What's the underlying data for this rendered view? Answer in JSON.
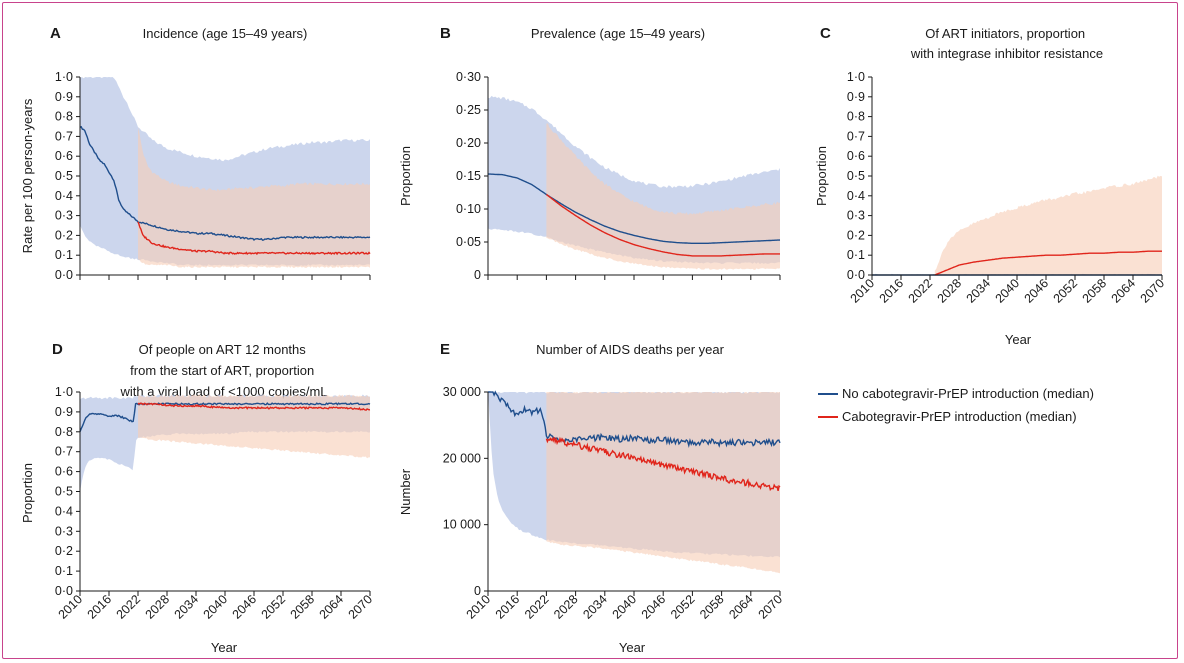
{
  "figure": {
    "colors": {
      "border": "#c8438c",
      "blue_line": "#1f4e8c",
      "red_line": "#e0251b",
      "blue_band": "#b9c6e6",
      "red_band": "#f7cdb6",
      "axis": "#1a1a1a"
    },
    "legend": {
      "entries": [
        "No cabotegravir-PrEP introduction (median)",
        "Cabotegravir-PrEP  introduction (median)"
      ]
    }
  },
  "chart_data": [
    {
      "id": "A",
      "type": "area",
      "title": "Incidence (age 15–49 years)",
      "xlabel": "",
      "ylabel": "Rate per 100 person-years",
      "xlim": [
        2010,
        2070
      ],
      "ylim": [
        0,
        1.0
      ],
      "yticks": [
        "0·0",
        "0·1",
        "0·2",
        "0·3",
        "0·4",
        "0·5",
        "0·6",
        "0·7",
        "0·8",
        "0·9",
        "1·0"
      ],
      "xtick_values": [
        2010,
        2016,
        2022,
        2028,
        2034,
        2040,
        2046,
        2052,
        2058,
        2064,
        2070
      ],
      "xtick_labels_shown": false,
      "series": [
        {
          "name": "No cabotegravir-PrEP introduction (median)",
          "x": [
            2010,
            2011,
            2012,
            2013,
            2014,
            2015,
            2016,
            2017,
            2018,
            2019,
            2020,
            2021,
            2022,
            2025,
            2028,
            2031,
            2034,
            2037,
            2040,
            2043,
            2046,
            2049,
            2052,
            2055,
            2058,
            2061,
            2064,
            2067,
            2070
          ],
          "median": [
            0.75,
            0.73,
            0.66,
            0.62,
            0.58,
            0.56,
            0.52,
            0.48,
            0.38,
            0.33,
            0.31,
            0.29,
            0.27,
            0.25,
            0.23,
            0.22,
            0.21,
            0.21,
            0.2,
            0.19,
            0.18,
            0.18,
            0.19,
            0.19,
            0.19,
            0.19,
            0.19,
            0.19,
            0.19
          ],
          "lower": [
            0.25,
            0.2,
            0.17,
            0.15,
            0.14,
            0.13,
            0.12,
            0.11,
            0.1,
            0.09,
            0.09,
            0.08,
            0.08,
            0.07,
            0.06,
            0.05,
            0.05,
            0.05,
            0.05,
            0.05,
            0.05,
            0.05,
            0.05,
            0.05,
            0.05,
            0.05,
            0.05,
            0.05,
            0.05
          ],
          "upper": [
            1.0,
            1.0,
            1.0,
            1.0,
            1.0,
            1.0,
            1.0,
            1.0,
            0.95,
            0.9,
            0.86,
            0.8,
            0.75,
            0.68,
            0.64,
            0.62,
            0.6,
            0.59,
            0.58,
            0.6,
            0.62,
            0.64,
            0.65,
            0.66,
            0.67,
            0.67,
            0.68,
            0.68,
            0.68
          ]
        },
        {
          "name": "Cabotegravir-PrEP  introduction (median)",
          "x": [
            2022,
            2023,
            2024,
            2025,
            2028,
            2031,
            2034,
            2037,
            2040,
            2043,
            2046,
            2049,
            2052,
            2055,
            2058,
            2061,
            2064,
            2067,
            2070
          ],
          "median": [
            0.27,
            0.2,
            0.18,
            0.16,
            0.14,
            0.13,
            0.12,
            0.12,
            0.11,
            0.11,
            0.11,
            0.11,
            0.11,
            0.11,
            0.11,
            0.11,
            0.11,
            0.11,
            0.11
          ],
          "lower": [
            0.08,
            0.06,
            0.05,
            0.05,
            0.05,
            0.04,
            0.04,
            0.04,
            0.04,
            0.04,
            0.04,
            0.04,
            0.04,
            0.04,
            0.04,
            0.04,
            0.04,
            0.04,
            0.04
          ],
          "upper": [
            0.75,
            0.62,
            0.55,
            0.52,
            0.47,
            0.45,
            0.44,
            0.43,
            0.43,
            0.44,
            0.44,
            0.45,
            0.45,
            0.46,
            0.46,
            0.46,
            0.46,
            0.46,
            0.46
          ]
        }
      ]
    },
    {
      "id": "B",
      "type": "area",
      "title": "Prevalence (age 15–49 years)",
      "xlabel": "",
      "ylabel": "Proportion",
      "xlim": [
        2010,
        2070
      ],
      "ylim": [
        0,
        0.3
      ],
      "yticks": [
        "0",
        "0·05",
        "0·10",
        "0·15",
        "0·20",
        "0·25",
        "0·30"
      ],
      "xtick_values": [
        2010,
        2016,
        2022,
        2028,
        2034,
        2040,
        2046,
        2052,
        2058,
        2064,
        2070
      ],
      "xtick_labels_shown": false,
      "series": [
        {
          "name": "No cabotegravir-PrEP introduction (median)",
          "x": [
            2010,
            2013,
            2016,
            2019,
            2022,
            2025,
            2028,
            2031,
            2034,
            2037,
            2040,
            2043,
            2046,
            2049,
            2052,
            2055,
            2058,
            2061,
            2064,
            2067,
            2070
          ],
          "median": [
            0.153,
            0.152,
            0.147,
            0.137,
            0.122,
            0.108,
            0.095,
            0.084,
            0.074,
            0.066,
            0.06,
            0.055,
            0.051,
            0.049,
            0.048,
            0.048,
            0.049,
            0.05,
            0.051,
            0.052,
            0.053
          ],
          "lower": [
            0.07,
            0.068,
            0.066,
            0.062,
            0.057,
            0.05,
            0.044,
            0.039,
            0.034,
            0.03,
            0.026,
            0.023,
            0.021,
            0.02,
            0.019,
            0.018,
            0.018,
            0.018,
            0.018,
            0.018,
            0.018
          ],
          "upper": [
            0.27,
            0.268,
            0.262,
            0.252,
            0.235,
            0.215,
            0.195,
            0.178,
            0.163,
            0.152,
            0.143,
            0.137,
            0.134,
            0.134,
            0.135,
            0.138,
            0.142,
            0.147,
            0.152,
            0.156,
            0.16
          ]
        },
        {
          "name": "Cabotegravir-PrEP  introduction (median)",
          "x": [
            2022,
            2025,
            2028,
            2031,
            2034,
            2037,
            2040,
            2043,
            2046,
            2049,
            2052,
            2055,
            2058,
            2061,
            2064,
            2067,
            2070
          ],
          "median": [
            0.122,
            0.105,
            0.09,
            0.076,
            0.064,
            0.054,
            0.046,
            0.04,
            0.035,
            0.031,
            0.029,
            0.029,
            0.029,
            0.03,
            0.031,
            0.032,
            0.032
          ],
          "lower": [
            0.057,
            0.047,
            0.039,
            0.032,
            0.026,
            0.021,
            0.017,
            0.014,
            0.012,
            0.011,
            0.01,
            0.009,
            0.009,
            0.009,
            0.009,
            0.009,
            0.009
          ],
          "upper": [
            0.23,
            0.205,
            0.18,
            0.157,
            0.138,
            0.123,
            0.111,
            0.102,
            0.096,
            0.093,
            0.093,
            0.095,
            0.098,
            0.101,
            0.104,
            0.107,
            0.11
          ]
        }
      ]
    },
    {
      "id": "C",
      "type": "area",
      "title": "Of ART initiators, proportion\nwith integrase inhibitor resistance",
      "xlabel": "Year",
      "ylabel": "Proportion",
      "xlim": [
        2010,
        2070
      ],
      "ylim": [
        0,
        1.0
      ],
      "yticks": [
        "0·0",
        "0·1",
        "0·2",
        "0·3",
        "0·4",
        "0·5",
        "0·6",
        "0·7",
        "0·8",
        "0·9",
        "1·0"
      ],
      "xtick_values": [
        2010,
        2016,
        2022,
        2028,
        2034,
        2040,
        2046,
        2052,
        2058,
        2064,
        2070
      ],
      "xtick_labels": [
        "2010",
        "2016",
        "2022",
        "2028",
        "2034",
        "2040",
        "2046",
        "2052",
        "2058",
        "2064",
        "2070"
      ],
      "xtick_labels_shown": true,
      "series": [
        {
          "name": "No cabotegravir-PrEP introduction (median)",
          "x": [
            2010,
            2070
          ],
          "median": [
            0.0,
            0.0
          ],
          "lower": [
            0.0,
            0.0
          ],
          "upper": [
            0.0,
            0.0
          ]
        },
        {
          "name": "Cabotegravir-PrEP  introduction (median)",
          "x": [
            2023,
            2024,
            2025,
            2026,
            2028,
            2031,
            2034,
            2037,
            2040,
            2043,
            2046,
            2049,
            2052,
            2055,
            2058,
            2061,
            2064,
            2067,
            2070
          ],
          "median": [
            0.0,
            0.01,
            0.02,
            0.03,
            0.05,
            0.065,
            0.075,
            0.085,
            0.09,
            0.095,
            0.1,
            0.1,
            0.105,
            0.11,
            0.11,
            0.115,
            0.115,
            0.12,
            0.12
          ],
          "lower": [
            0.0,
            0.0,
            0.0,
            0.0,
            0.0,
            0.0,
            0.0,
            0.0,
            0.0,
            0.0,
            0.0,
            0.0,
            0.0,
            0.0,
            0.0,
            0.0,
            0.0,
            0.0,
            0.0
          ],
          "upper": [
            0.02,
            0.08,
            0.14,
            0.18,
            0.22,
            0.26,
            0.29,
            0.32,
            0.34,
            0.36,
            0.38,
            0.39,
            0.41,
            0.42,
            0.44,
            0.45,
            0.46,
            0.48,
            0.5
          ]
        }
      ]
    },
    {
      "id": "D",
      "type": "area",
      "title": "Of people on ART 12 months\nfrom the start of ART, proportion\nwith a viral load of <1000 copies/mL",
      "xlabel": "Year",
      "ylabel": "Proportion",
      "xlim": [
        2010,
        2070
      ],
      "ylim": [
        0,
        1.0
      ],
      "yticks": [
        "0·0",
        "0·1",
        "0·2",
        "0·3",
        "0·4",
        "0·5",
        "0·6",
        "0·7",
        "0·8",
        "0·9",
        "1·0"
      ],
      "xtick_values": [
        2010,
        2016,
        2022,
        2028,
        2034,
        2040,
        2046,
        2052,
        2058,
        2064,
        2070
      ],
      "xtick_labels": [
        "2010",
        "2016",
        "2022",
        "2028",
        "2034",
        "2040",
        "2046",
        "2052",
        "2058",
        "2064",
        "2070"
      ],
      "xtick_labels_shown": true,
      "series": [
        {
          "name": "No cabotegravir-PrEP introduction (median)",
          "x": [
            2010,
            2011,
            2012,
            2014,
            2016,
            2018,
            2020,
            2021,
            2021.5,
            2022,
            2025,
            2030,
            2035,
            2040,
            2045,
            2050,
            2055,
            2060,
            2065,
            2070
          ],
          "median": [
            0.8,
            0.86,
            0.89,
            0.89,
            0.88,
            0.88,
            0.86,
            0.85,
            0.94,
            0.94,
            0.94,
            0.94,
            0.94,
            0.94,
            0.94,
            0.94,
            0.94,
            0.94,
            0.94,
            0.94
          ],
          "lower": [
            0.5,
            0.62,
            0.66,
            0.67,
            0.66,
            0.64,
            0.62,
            0.6,
            0.76,
            0.77,
            0.78,
            0.79,
            0.79,
            0.79,
            0.8,
            0.8,
            0.8,
            0.8,
            0.8,
            0.8
          ],
          "upper": [
            0.96,
            0.97,
            0.97,
            0.97,
            0.97,
            0.97,
            0.97,
            0.97,
            0.98,
            0.98,
            0.98,
            0.98,
            0.98,
            0.98,
            0.98,
            0.98,
            0.98,
            0.98,
            0.98,
            0.98
          ]
        },
        {
          "name": "Cabotegravir-PrEP  introduction (median)",
          "x": [
            2022,
            2025,
            2030,
            2035,
            2040,
            2045,
            2050,
            2055,
            2060,
            2065,
            2070
          ],
          "median": [
            0.94,
            0.94,
            0.93,
            0.93,
            0.92,
            0.92,
            0.92,
            0.92,
            0.92,
            0.92,
            0.91
          ],
          "lower": [
            0.77,
            0.76,
            0.75,
            0.74,
            0.73,
            0.72,
            0.71,
            0.7,
            0.69,
            0.68,
            0.67
          ],
          "upper": [
            0.98,
            0.98,
            0.98,
            0.98,
            0.98,
            0.98,
            0.98,
            0.98,
            0.98,
            0.98,
            0.98
          ]
        }
      ]
    },
    {
      "id": "E",
      "type": "area",
      "title": "Number of AIDS deaths per year",
      "xlabel": "Year",
      "ylabel": "Number",
      "xlim": [
        2010,
        2070
      ],
      "ylim": [
        0,
        30000
      ],
      "yticks": [
        "0",
        "10 000",
        "20 000",
        "30 000"
      ],
      "xtick_values": [
        2010,
        2016,
        2022,
        2028,
        2034,
        2040,
        2046,
        2052,
        2058,
        2064,
        2070
      ],
      "xtick_labels": [
        "2010",
        "2016",
        "2022",
        "2028",
        "2034",
        "2040",
        "2046",
        "2052",
        "2058",
        "2064",
        "2070"
      ],
      "xtick_labels_shown": true,
      "series": [
        {
          "name": "No cabotegravir-PrEP introduction (median)",
          "x": [
            2010,
            2011,
            2012,
            2013,
            2014,
            2015,
            2016,
            2017,
            2018,
            2019,
            2020,
            2021,
            2022,
            2025,
            2028,
            2031,
            2034,
            2037,
            2040,
            2043,
            2046,
            2049,
            2052,
            2055,
            2058,
            2061,
            2064,
            2067,
            2070
          ],
          "median": [
            30500,
            30000,
            29500,
            28500,
            28000,
            27000,
            26500,
            27000,
            27500,
            26800,
            27200,
            27000,
            23500,
            22500,
            22800,
            23000,
            23200,
            22900,
            23100,
            22700,
            22800,
            22500,
            22300,
            22600,
            22200,
            22400,
            22300,
            22500,
            22400
          ],
          "lower": [
            30000,
            18000,
            14000,
            12000,
            11000,
            10000,
            9500,
            9000,
            8800,
            8500,
            8200,
            8000,
            7700,
            7400,
            7200,
            7000,
            6800,
            6600,
            6400,
            6200,
            6000,
            5800,
            5700,
            5600,
            5500,
            5400,
            5300,
            5200,
            5100
          ],
          "upper": [
            30000,
            30000,
            30000,
            30000,
            30000,
            30000,
            30000,
            30000,
            30000,
            30000,
            30000,
            30000,
            30000,
            30000,
            30000,
            30000,
            30000,
            30000,
            30000,
            30000,
            30000,
            30000,
            30000,
            30000,
            30000,
            30000,
            30000,
            30000,
            30000
          ]
        },
        {
          "name": "Cabotegravir-PrEP  introduction (median)",
          "x": [
            2022,
            2025,
            2028,
            2031,
            2034,
            2037,
            2040,
            2043,
            2046,
            2049,
            2052,
            2055,
            2058,
            2061,
            2064,
            2067,
            2070
          ],
          "median": [
            23000,
            22500,
            22000,
            21500,
            21000,
            20500,
            20000,
            19500,
            19000,
            18500,
            18000,
            17500,
            17000,
            16500,
            16200,
            15800,
            15500
          ],
          "lower": [
            7500,
            7000,
            6800,
            6600,
            6400,
            6100,
            5800,
            5500,
            5200,
            4900,
            4600,
            4300,
            4000,
            3700,
            3400,
            3100,
            2800
          ],
          "upper": [
            30000,
            30000,
            30000,
            30000,
            30000,
            30000,
            30000,
            30000,
            30000,
            30000,
            30000,
            30000,
            30000,
            30000,
            30000,
            30000,
            30000
          ]
        }
      ]
    }
  ]
}
